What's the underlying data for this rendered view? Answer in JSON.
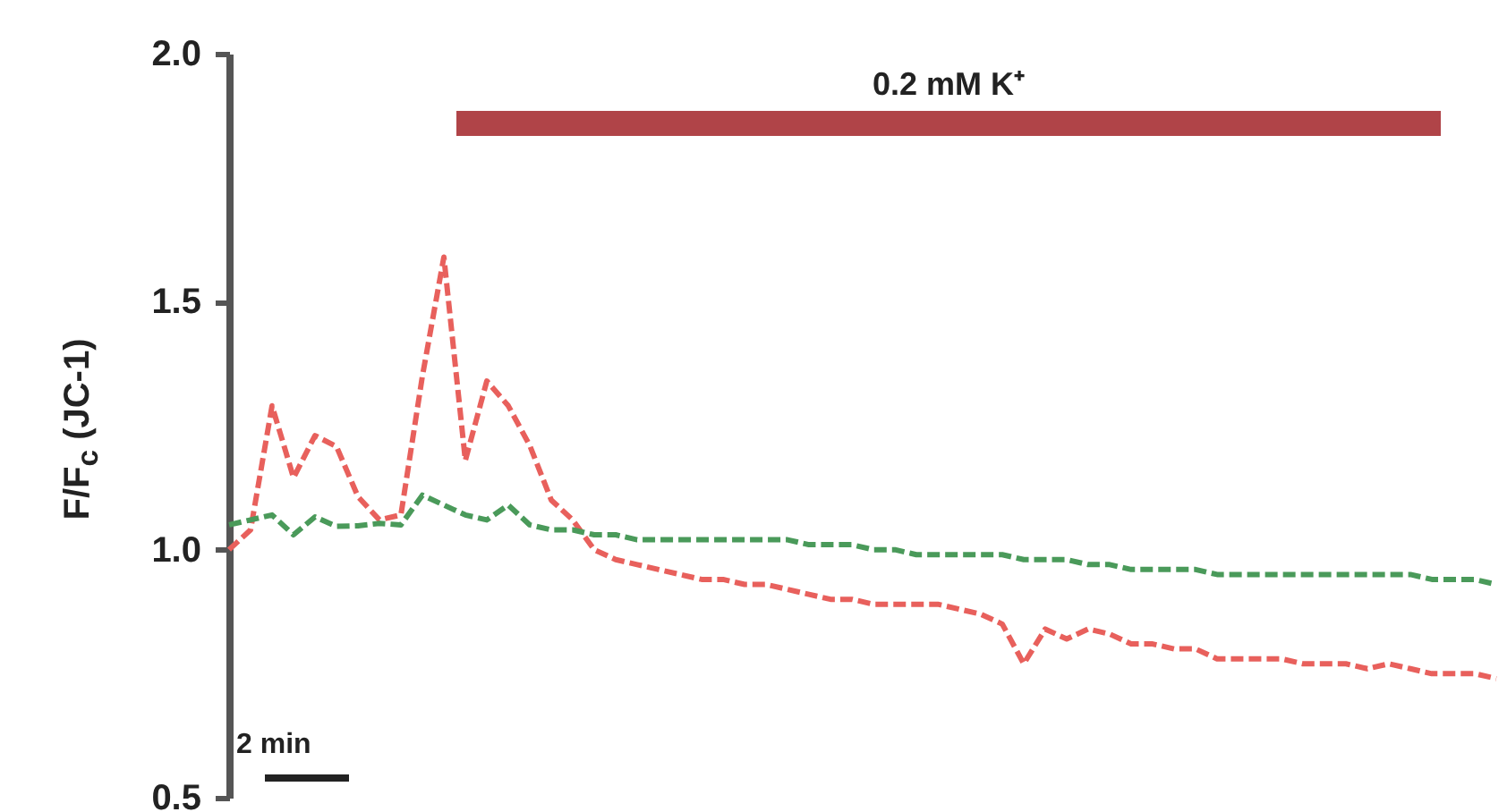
{
  "chart_data": {
    "type": "line",
    "ylabel": "F/F$_{c}$ (JC-1)",
    "annotations": [
      "0.2 mM K⁺",
      "2 min"
    ],
    "categories": [
      null,
      null,
      null,
      null,
      null,
      null,
      null,
      null,
      null,
      null,
      null,
      null,
      null,
      null,
      null,
      null,
      null,
      null,
      null,
      null,
      null,
      null,
      null,
      null,
      null,
      null,
      null,
      null,
      null,
      null,
      null,
      null,
      null,
      null,
      null,
      null,
      null,
      null,
      null,
      null,
      null,
      null,
      null,
      null,
      null,
      null,
      null,
      null,
      null,
      null,
      null,
      null,
      null,
      null,
      null,
      null,
      null,
      null,
      null,
      null
    ],
    "series": [
      {
        "color": "#e8605c",
        "values": [
          1.0,
          1.04,
          1.29,
          1.145,
          1.23,
          1.208,
          1.107,
          1.06,
          1.07,
          1.35,
          1.59,
          1.18,
          1.34,
          1.29,
          1.21,
          1.1,
          1.06,
          1.0,
          0.98,
          0.97,
          0.96,
          0.95,
          0.94,
          0.94,
          0.93,
          0.93,
          0.92,
          0.91,
          0.9,
          0.9,
          0.89,
          0.89,
          0.89,
          0.89,
          0.88,
          0.87,
          0.85,
          0.77,
          0.84,
          0.82,
          0.84,
          0.83,
          0.81,
          0.81,
          0.8,
          0.8,
          0.78,
          0.78,
          0.78,
          0.78,
          0.77,
          0.77,
          0.77,
          0.76,
          0.77,
          0.76,
          0.75,
          0.75,
          0.75,
          0.74
        ]
      },
      {
        "color": "#4a9a5a",
        "values": [
          1.05,
          1.06,
          1.07,
          1.03,
          1.066,
          1.047,
          1.048,
          1.053,
          1.05,
          1.11,
          1.09,
          1.07,
          1.06,
          1.09,
          1.05,
          1.04,
          1.04,
          1.03,
          1.03,
          1.02,
          1.02,
          1.02,
          1.02,
          1.02,
          1.02,
          1.02,
          1.02,
          1.01,
          1.01,
          1.01,
          1.0,
          1.0,
          0.99,
          0.99,
          0.99,
          0.99,
          0.99,
          0.98,
          0.98,
          0.98,
          0.97,
          0.97,
          0.96,
          0.96,
          0.96,
          0.96,
          0.95,
          0.95,
          0.95,
          0.95,
          0.95,
          0.95,
          0.95,
          0.95,
          0.95,
          0.95,
          0.94,
          0.94,
          0.94,
          0.93
        ]
      }
    ],
    "ylim": [
      0.5,
      2.0
    ],
    "yticks": [
      0.5,
      {
        "value": 1,
        "label": "1.0"
      },
      1.5,
      {
        "value": 2,
        "label": "2.0"
      }
    ],
    "tick_labels": "y",
    "line_style": "dashed",
    "marker": "none"
  }
}
